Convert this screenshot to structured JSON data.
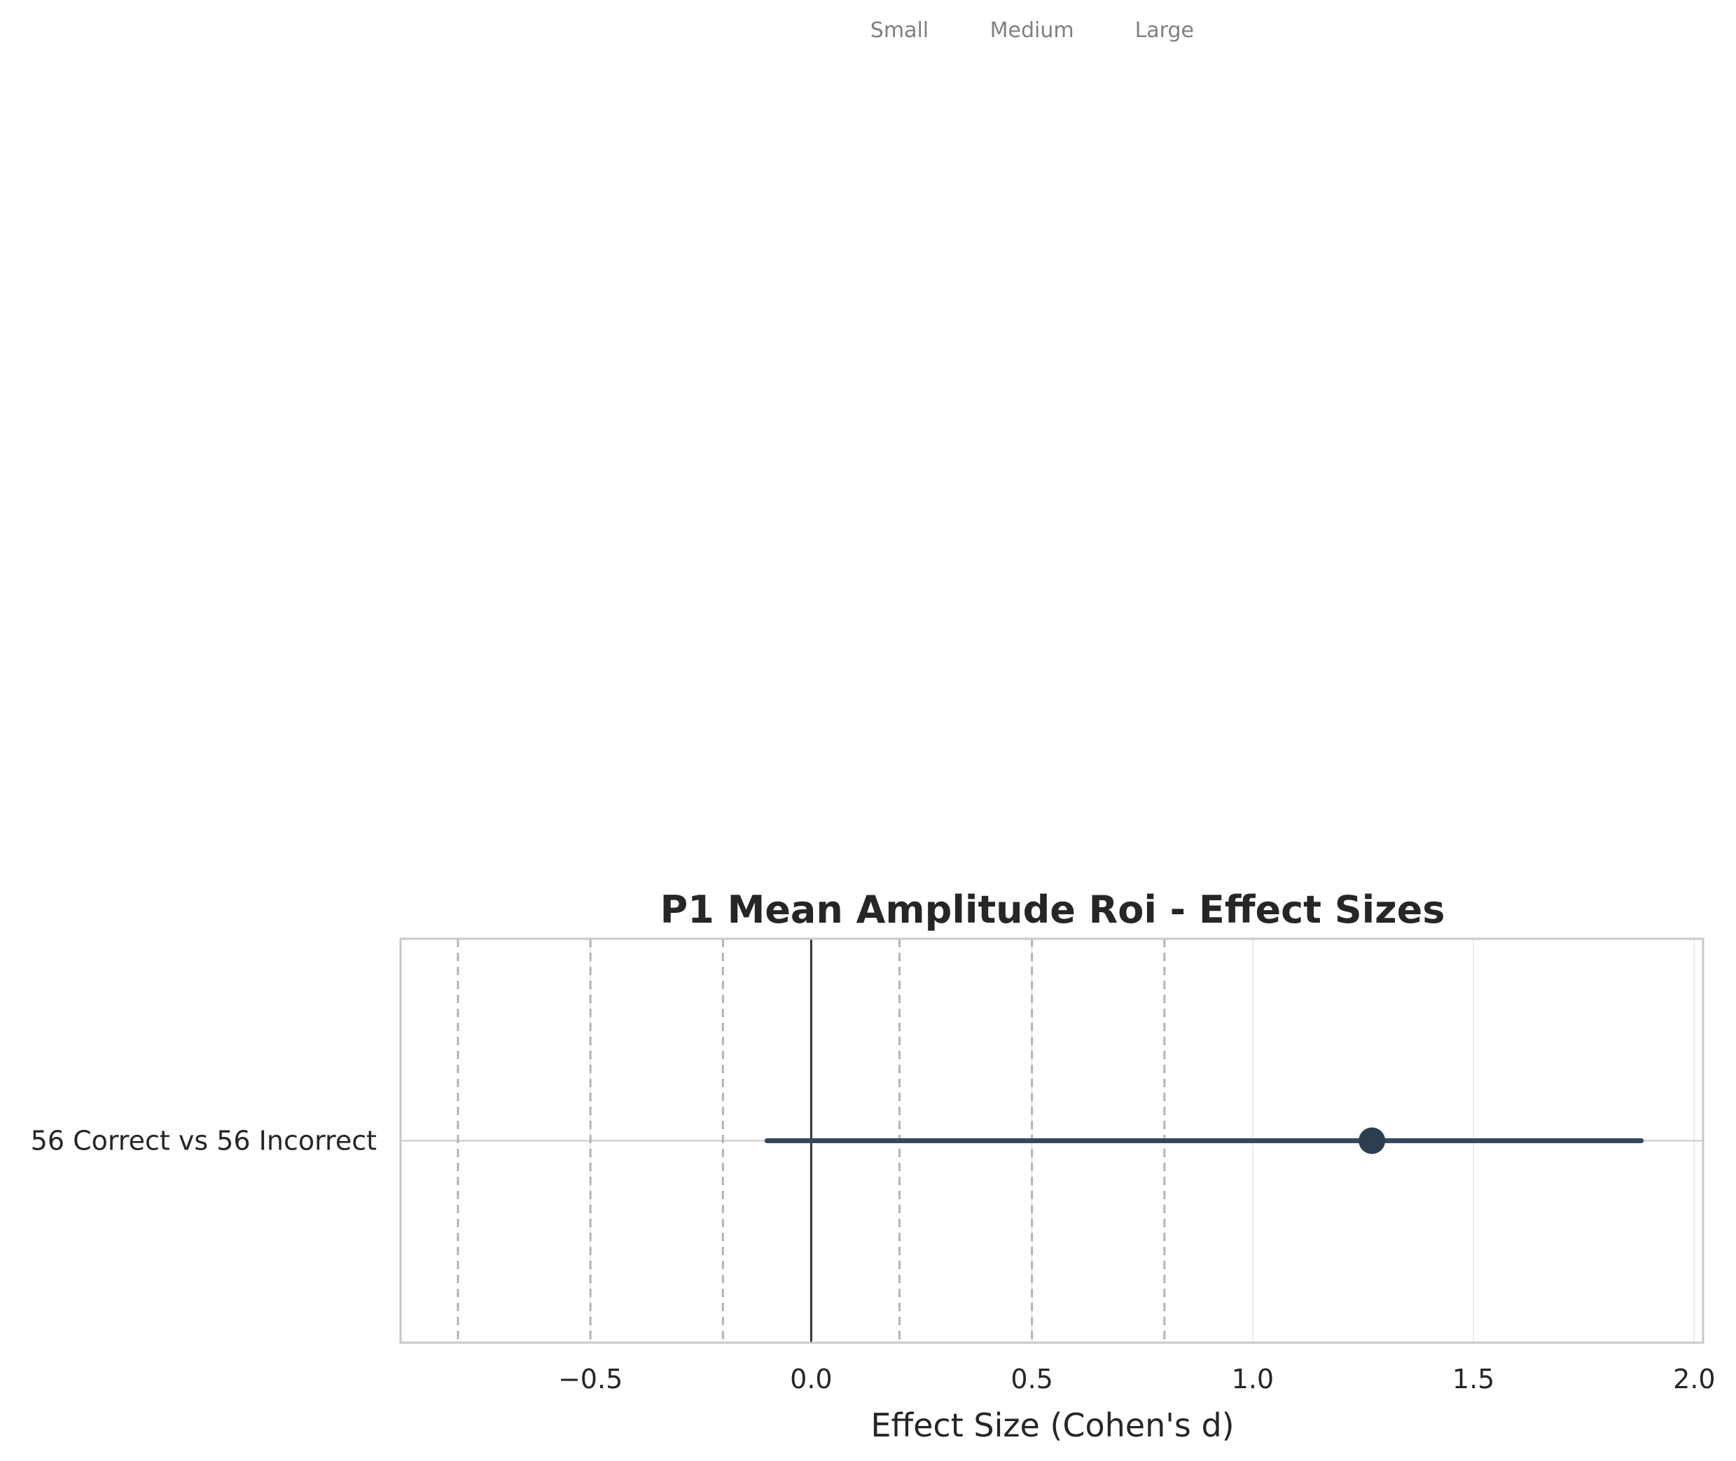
{
  "chart_data": {
    "type": "scatter",
    "title": "P1 Mean Amplitude Roi - Effect Sizes",
    "xlabel": "Effect Size (Cohen's d)",
    "ylabel": "",
    "xlim": [
      -0.93,
      2.02
    ],
    "xticks": [
      -0.5,
      0.0,
      0.5,
      1.0,
      1.5,
      2.0
    ],
    "xtick_labels": [
      "−0.5",
      "0.0",
      "0.5",
      "1.0",
      "1.5",
      "2.0"
    ],
    "grid": true,
    "zero_line": 0,
    "threshold_lines": [
      -0.8,
      -0.5,
      -0.2,
      0.2,
      0.5,
      0.8
    ],
    "threshold_annotations": [
      {
        "label": "Small",
        "x": 0.2
      },
      {
        "label": "Medium",
        "x": 0.5
      },
      {
        "label": "Large",
        "x": 0.8
      }
    ],
    "comparisons": [
      {
        "label": "56 Correct vs 56 Incorrect",
        "d": 1.27,
        "ci_low": -0.1,
        "ci_high": 1.88
      }
    ],
    "colors": {
      "point": "#2c3e50",
      "ci_line": "#34495e",
      "threshold": "#b3b3b3",
      "zero_line": "#333333",
      "grid": "#ebebeb",
      "frame": "#c8c8c8"
    }
  }
}
